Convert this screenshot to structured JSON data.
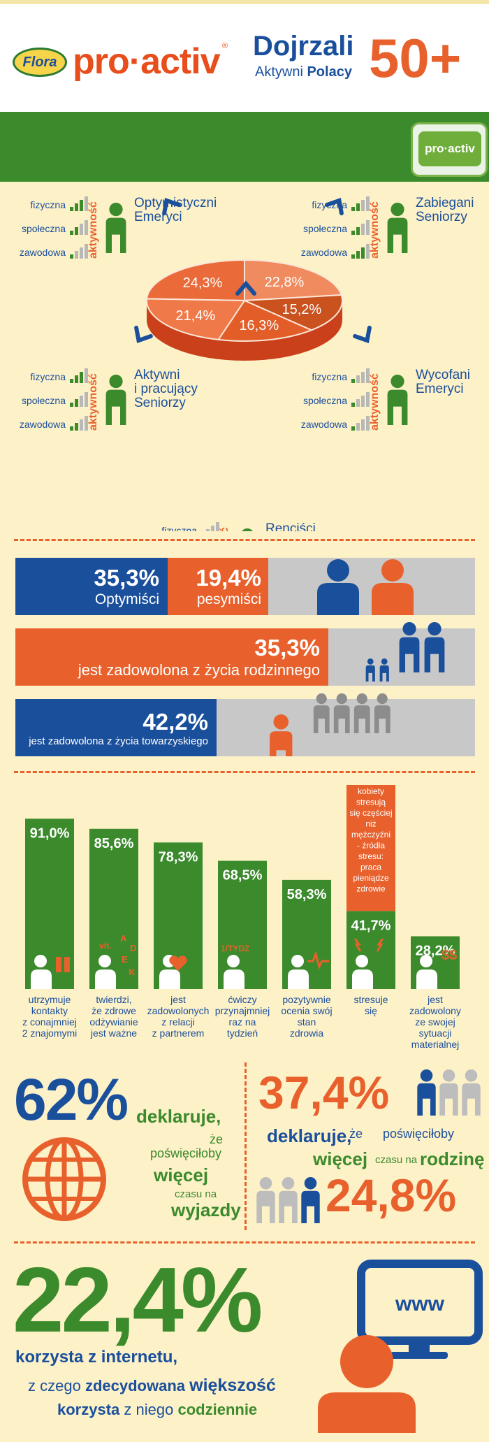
{
  "header": {
    "brand_flora": "Flora",
    "brand_name": "pro·activ",
    "brand_reg": "®",
    "title": "Dojrzali",
    "subtitle_a": "Aktywni",
    "subtitle_b": "Polacy",
    "age": "50+"
  },
  "product": {
    "label": "pro·activ"
  },
  "activity": {
    "vertical": "aktywność",
    "row1": "fizyczna",
    "row2": "społeczna",
    "row3": "zawodowa"
  },
  "groups": [
    {
      "title1": "Optymistyczni",
      "title2": "Emeryci",
      "title3": ""
    },
    {
      "title1": "Zabiegani",
      "title2": "Seniorzy",
      "title3": ""
    },
    {
      "title1": "Aktywni",
      "title2": "i pracujący",
      "title3": "Seniorzy"
    },
    {
      "title1": "Wycofani",
      "title2": "Emeryci",
      "title3": ""
    },
    {
      "title1": "Renciści",
      "title2": "",
      "title3": ""
    }
  ],
  "chart_data": [
    {
      "type": "pie",
      "categories": [
        "Optymistyczni Emeryci",
        "Zabiegani Seniorzy",
        "Wycofani Emeryci",
        "Renciści",
        "Aktywni i pracujący Seniorzy"
      ],
      "values": [
        24.3,
        22.8,
        15.2,
        16.3,
        21.4
      ],
      "labels": [
        "24,3%",
        "22,8%",
        "15,2%",
        "16,3%",
        "21,4%"
      ]
    },
    {
      "type": "bar",
      "categories": [
        "utrzymuje kontakty z conajmniej 2 znajomymi",
        "twierdzi, że zdrowe odżywianie jest ważne",
        "jest zadowolonych z relacji z partnerem",
        "ćwiczy przynajmniej raz na tydzień",
        "pozytywnie ocenia swój stan zdrowia",
        "stresuje się",
        "jest zadowolony ze swojej sytuacji materialnej"
      ],
      "values": [
        91.0,
        85.6,
        78.3,
        68.5,
        58.3,
        41.7,
        28.2
      ],
      "labels": [
        "91,0%",
        "85,6%",
        "78,3%",
        "68,5%",
        "58,3%",
        "41,7%",
        "28,2%"
      ],
      "ylim": [
        0,
        100
      ]
    }
  ],
  "bar_captions": [
    [
      "utrzymuje",
      "kontakty",
      "z conajmniej",
      "2 znajomymi"
    ],
    [
      "twierdzi,",
      "że zdrowe",
      "odżywianie",
      "jest ważne"
    ],
    [
      "jest",
      "zadowolonych",
      "z relacji",
      "z partnerem"
    ],
    [
      "ćwiczy",
      "przynajmniej",
      "raz na",
      "tydzień"
    ],
    [
      "pozytywnie",
      "ocenia swój",
      "stan",
      "zdrowia"
    ],
    [
      "stresuje",
      "się"
    ],
    [
      "jest",
      "zadowolony",
      "ze swojej",
      "sytuacji",
      "materialnej"
    ]
  ],
  "bar_icon_text": {
    "vit": "vit.",
    "a": "A",
    "d": "D",
    "e": "E",
    "k": "K",
    "tydz": "1/TYDZ",
    "dollar": "$$"
  },
  "stress_note": [
    "kobiety",
    "stresują",
    "się częściej",
    "niż",
    "mężczyźni",
    "- źródła",
    "stresu:",
    "praca",
    "pieniądze",
    "zdrowie"
  ],
  "mood": {
    "opt_pct": "35,3%",
    "opt_label": "Optymiści",
    "pes_pct": "19,4%",
    "pes_label": "pesymiści"
  },
  "family": {
    "pct": "35,3%",
    "label": "jest zadowolona z życia rodzinnego"
  },
  "social": {
    "pct": "42,2%",
    "label": "jest zadowolona z życia towarzyskiego"
  },
  "travel": {
    "pct": "62%",
    "l1": "deklaruje,",
    "l2": "że",
    "l3": "poświęciłoby",
    "l4": "więcej",
    "l5": "czasu na",
    "l6": "wyjazdy"
  },
  "familytime": {
    "pct": "37,4%",
    "l1": "deklaruje,",
    "l2": "że",
    "l3": "poświęciłoby",
    "l4": "więcej",
    "l5": "czasu na",
    "l6": "rodzinę",
    "pct2": "24,8%"
  },
  "internet": {
    "pct": "22,4%",
    "l1": "korzysta",
    "l2": "z internetu,",
    "l3": "z czego",
    "l4": "zdecydowana",
    "l5": "większość",
    "l6": "korzysta",
    "l7": "z niego",
    "l8": "codziennie",
    "www": "www"
  },
  "colors": {
    "blue": "#1a4f9c",
    "orange": "#e8612c",
    "green": "#3b8a2c",
    "gray": "#c8c8c8",
    "bg": "#fdf1c8"
  }
}
